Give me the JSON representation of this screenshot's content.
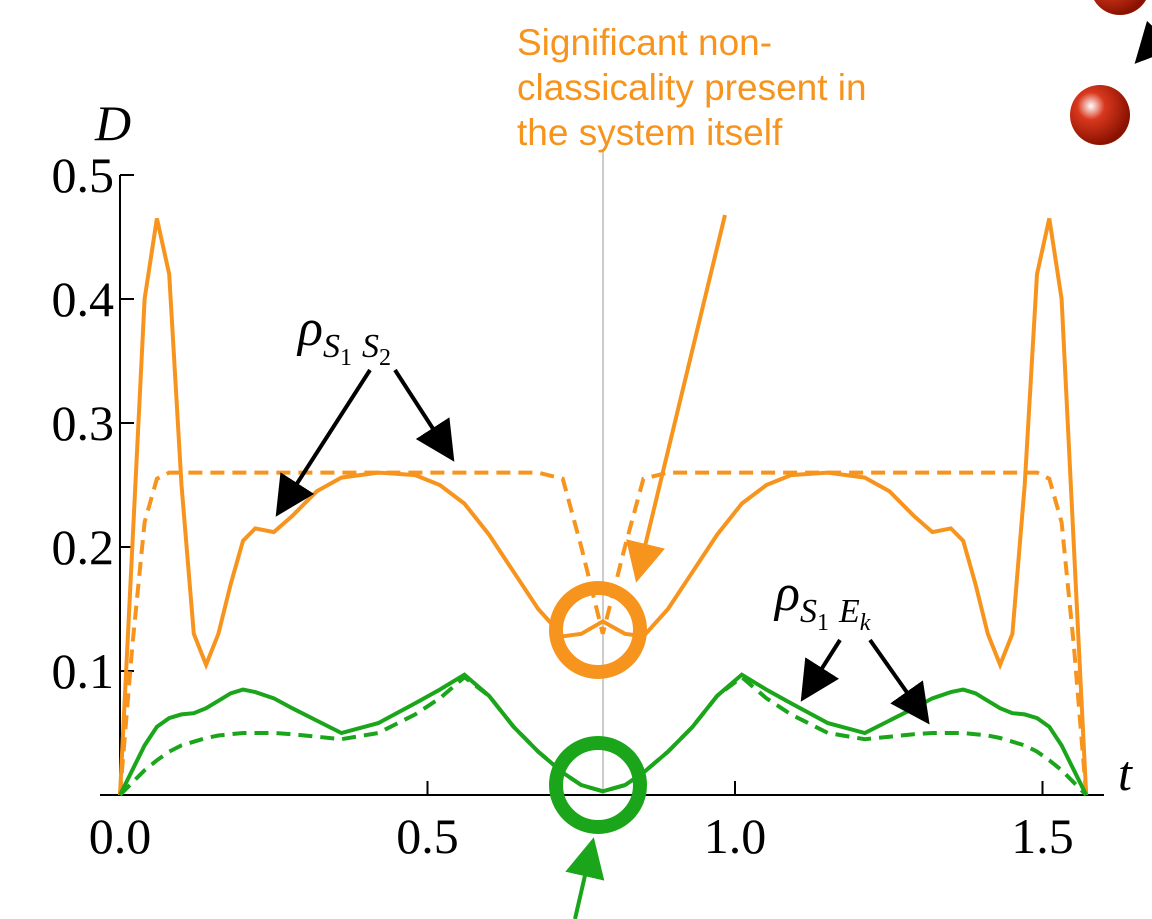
{
  "chart_data": {
    "type": "line",
    "xlabel": "t",
    "ylabel": "D",
    "xlim": [
      0,
      1.6
    ],
    "ylim": [
      0,
      0.5
    ],
    "xticks": [
      {
        "value": 0,
        "label": "0.0"
      },
      0.5,
      {
        "value": 1,
        "label": "1.0"
      },
      1.5
    ],
    "yticks": [
      0.1,
      0.2,
      0.3,
      0.4,
      0.5
    ],
    "x": [
      0,
      0.02,
      0.04,
      0.06,
      0.08,
      0.1,
      0.12,
      0.14,
      0.16,
      0.18,
      0.2,
      0.22,
      0.25,
      0.28,
      0.32,
      0.36,
      0.42,
      0.48,
      0.52,
      0.56,
      0.6,
      0.64,
      0.68,
      0.72,
      0.75,
      0.785,
      0.821,
      0.851,
      0.891,
      0.931,
      0.971,
      1.011,
      1.051,
      1.091,
      1.151,
      1.211,
      1.251,
      1.291,
      1.321,
      1.351,
      1.371,
      1.391,
      1.411,
      1.431,
      1.451,
      1.471,
      1.491,
      1.511,
      1.531,
      1.551,
      1.571
    ],
    "series": [
      {
        "color": "#f7941d",
        "dash": false,
        "values": [
          0,
          0.2,
          0.4,
          0.465,
          0.42,
          0.25,
          0.13,
          0.105,
          0.13,
          0.17,
          0.205,
          0.215,
          0.212,
          0.225,
          0.245,
          0.256,
          0.26,
          0.258,
          0.25,
          0.235,
          0.21,
          0.18,
          0.15,
          0.128,
          0.13,
          0.14,
          0.13,
          0.128,
          0.15,
          0.18,
          0.21,
          0.235,
          0.25,
          0.258,
          0.26,
          0.256,
          0.245,
          0.225,
          0.212,
          0.215,
          0.205,
          0.17,
          0.13,
          0.105,
          0.13,
          0.25,
          0.42,
          0.465,
          0.4,
          0.2,
          0
        ]
      },
      {
        "color": "#f7941d",
        "dash": true,
        "values": [
          0,
          0.12,
          0.22,
          0.255,
          0.26,
          0.26,
          0.26,
          0.26,
          0.26,
          0.26,
          0.26,
          0.26,
          0.26,
          0.26,
          0.26,
          0.26,
          0.26,
          0.26,
          0.26,
          0.26,
          0.26,
          0.26,
          0.26,
          0.255,
          0.2,
          0.13,
          0.2,
          0.255,
          0.26,
          0.26,
          0.26,
          0.26,
          0.26,
          0.26,
          0.26,
          0.26,
          0.26,
          0.26,
          0.26,
          0.26,
          0.26,
          0.26,
          0.26,
          0.26,
          0.26,
          0.26,
          0.26,
          0.255,
          0.22,
          0.12,
          0
        ]
      },
      {
        "color": "#1aa51a",
        "dash": false,
        "values": [
          0,
          0.02,
          0.04,
          0.055,
          0.062,
          0.065,
          0.066,
          0.07,
          0.076,
          0.082,
          0.085,
          0.083,
          0.078,
          0.07,
          0.06,
          0.05,
          0.058,
          0.074,
          0.085,
          0.097,
          0.08,
          0.055,
          0.035,
          0.018,
          0.008,
          0.003,
          0.008,
          0.018,
          0.035,
          0.055,
          0.08,
          0.097,
          0.085,
          0.074,
          0.058,
          0.05,
          0.06,
          0.07,
          0.078,
          0.083,
          0.085,
          0.082,
          0.076,
          0.07,
          0.066,
          0.065,
          0.062,
          0.055,
          0.04,
          0.02,
          0
        ]
      },
      {
        "color": "#1aa51a",
        "dash": true,
        "values": [
          0,
          0.01,
          0.02,
          0.028,
          0.035,
          0.04,
          0.043,
          0.046,
          0.048,
          0.049,
          0.05,
          0.05,
          0.05,
          0.049,
          0.047,
          0.045,
          0.05,
          0.065,
          0.078,
          0.095,
          0.08,
          0.055,
          0.035,
          0.018,
          0.008,
          0.003,
          0.008,
          0.018,
          0.035,
          0.055,
          0.08,
          0.095,
          0.078,
          0.065,
          0.05,
          0.045,
          0.047,
          0.049,
          0.05,
          0.05,
          0.05,
          0.049,
          0.048,
          0.046,
          0.043,
          0.04,
          0.035,
          0.028,
          0.02,
          0.01,
          0
        ]
      }
    ],
    "annotations": [
      {
        "lines": [
          "Significant non-",
          "classicality present in",
          "the system itself"
        ]
      },
      {
        "parts": [
          "ρ",
          "S",
          "1",
          "S",
          "2"
        ]
      },
      {
        "parts": [
          "ρ",
          "S",
          "1",
          "E",
          "k"
        ]
      }
    ]
  }
}
